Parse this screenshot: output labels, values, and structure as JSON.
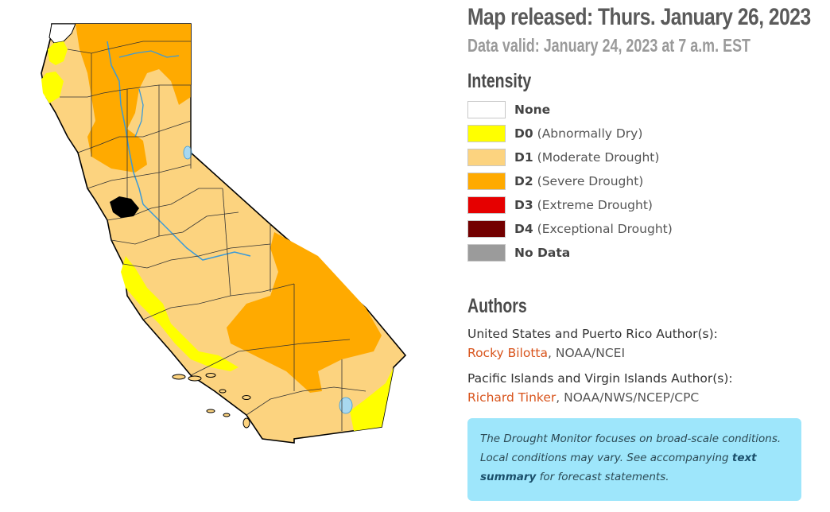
{
  "header": {
    "released": "Map released: Thurs. January 26, 2023",
    "valid": "Data valid: January 24, 2023 at 7 a.m. EST"
  },
  "legend": {
    "title": "Intensity",
    "items": [
      {
        "code": "None",
        "desc": "",
        "color": "#ffffff"
      },
      {
        "code": "D0",
        "desc": "(Abnormally Dry)",
        "color": "#ffff00"
      },
      {
        "code": "D1",
        "desc": "(Moderate Drought)",
        "color": "#fcd37f"
      },
      {
        "code": "D2",
        "desc": "(Severe Drought)",
        "color": "#ffaa00"
      },
      {
        "code": "D3",
        "desc": "(Extreme Drought)",
        "color": "#e60000"
      },
      {
        "code": "D4",
        "desc": "(Exceptional Drought)",
        "color": "#730000"
      },
      {
        "code": "No Data",
        "desc": "",
        "color": "#9b9b9b"
      }
    ]
  },
  "authors": {
    "title": "Authors",
    "groups": [
      {
        "heading": "United States and Puerto Rico Author(s):",
        "name": "Rocky Bilotta",
        "org": ", NOAA/NCEI"
      },
      {
        "heading": "Pacific Islands and Virgin Islands Author(s):",
        "name": "Richard Tinker",
        "org": ", NOAA/NWS/NCEP/CPC"
      }
    ]
  },
  "notice": {
    "text_before": "The Drought Monitor focuses on broad-scale conditions. Local conditions may vary. See accompanying ",
    "link": "text summary",
    "text_after": " for forecast statements."
  },
  "map": {
    "region": "California",
    "colors": {
      "d0": "#ffff00",
      "d1": "#fcd37f",
      "d2": "#ffaa00",
      "water": "#a8d8f0",
      "river": "#3a9ad9",
      "border": "#000000"
    }
  }
}
